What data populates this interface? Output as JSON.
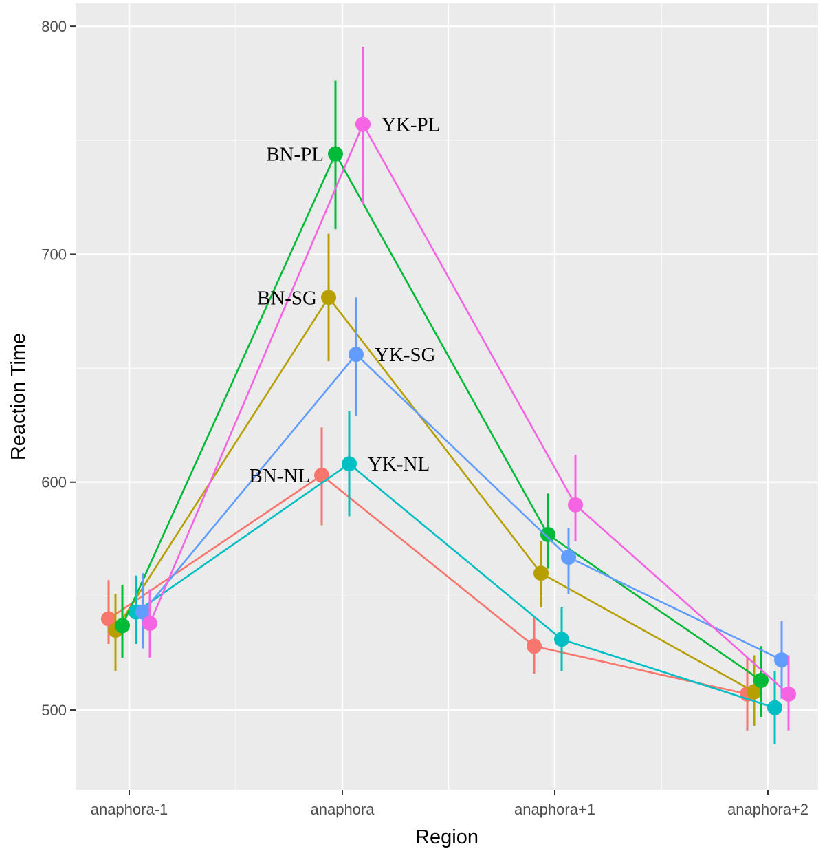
{
  "chart_data": {
    "type": "line",
    "title": "",
    "xlabel": "Region",
    "ylabel": "Reaction Time",
    "categories": [
      "anaphora-1",
      "anaphora",
      "anaphora+1",
      "anaphora+2"
    ],
    "ylim": [
      465,
      810
    ],
    "yticks": [
      500,
      600,
      700,
      800
    ],
    "grid": true,
    "legend": "none",
    "background": "#ebebeb",
    "series": [
      {
        "name": "BN-NL",
        "color": "#f8766d",
        "dodge": -3,
        "values": [
          540,
          603,
          528,
          507
        ],
        "ci_low": [
          529,
          581,
          516,
          491
        ],
        "ci_high": [
          557,
          624,
          541,
          523
        ]
      },
      {
        "name": "BN-SG",
        "color": "#b79f00",
        "dodge": -2,
        "values": [
          535,
          681,
          560,
          508
        ],
        "ci_low": [
          517,
          653,
          545,
          493
        ],
        "ci_high": [
          551,
          709,
          574,
          524
        ]
      },
      {
        "name": "BN-PL",
        "color": "#00ba38",
        "dodge": -1,
        "values": [
          537,
          744,
          577,
          513
        ],
        "ci_low": [
          523,
          711,
          562,
          497
        ],
        "ci_high": [
          555,
          776,
          595,
          528
        ]
      },
      {
        "name": "YK-NL",
        "color": "#00bfc4",
        "dodge": 1,
        "values": [
          543,
          608,
          531,
          501
        ],
        "ci_low": [
          529,
          585,
          517,
          485
        ],
        "ci_high": [
          559,
          631,
          545,
          517
        ]
      },
      {
        "name": "YK-SG",
        "color": "#619cff",
        "dodge": 2,
        "values": [
          543,
          656,
          567,
          522
        ],
        "ci_low": [
          527,
          629,
          551,
          505
        ],
        "ci_high": [
          560,
          681,
          580,
          539
        ]
      },
      {
        "name": "YK-PL",
        "color": "#f564e3",
        "dodge": 3,
        "values": [
          538,
          757,
          590,
          507
        ],
        "ci_low": [
          523,
          722,
          574,
          491
        ],
        "ci_high": [
          553,
          791,
          612,
          524
        ]
      }
    ],
    "annotations": [
      {
        "text": "BN-PL",
        "series": "BN-PL",
        "category": "anaphora",
        "side": "left"
      },
      {
        "text": "YK-PL",
        "series": "YK-PL",
        "category": "anaphora",
        "side": "right"
      },
      {
        "text": "BN-SG",
        "series": "BN-SG",
        "category": "anaphora",
        "side": "left"
      },
      {
        "text": "YK-SG",
        "series": "YK-SG",
        "category": "anaphora",
        "side": "right"
      },
      {
        "text": "BN-NL",
        "series": "BN-NL",
        "category": "anaphora",
        "side": "left"
      },
      {
        "text": "YK-NL",
        "series": "YK-NL",
        "category": "anaphora",
        "side": "right"
      }
    ]
  }
}
